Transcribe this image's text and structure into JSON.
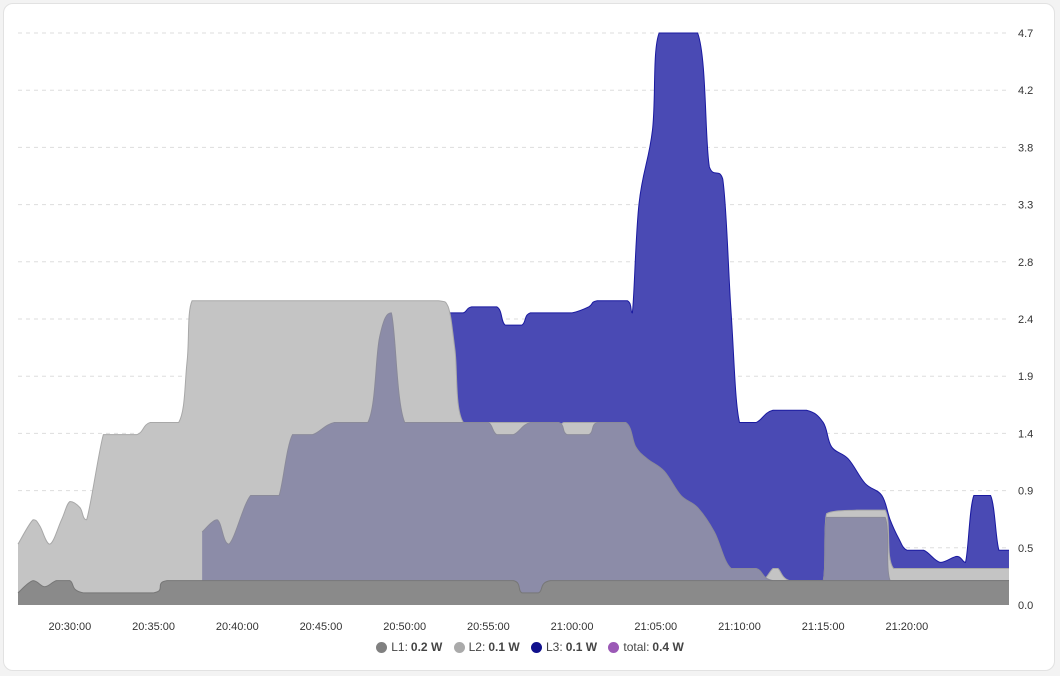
{
  "chart_data": {
    "type": "area",
    "x_ticks": [
      "20:30:00",
      "20:35:00",
      "20:40:00",
      "20:45:00",
      "20:50:00",
      "20:55:00",
      "21:00:00",
      "21:05:00",
      "21:10:00",
      "21:15:00",
      "21:20:00"
    ],
    "y_ticks": [
      "0.0",
      "0.5",
      "0.9",
      "1.4",
      "1.9",
      "2.4",
      "2.8",
      "3.3",
      "3.8",
      "4.2",
      "4.7"
    ],
    "ylim": [
      0,
      4.7
    ],
    "xlim_minutes": [
      -3.1,
      56.1
    ],
    "grid": true,
    "legend_position": "bottom",
    "series": [
      {
        "name": "L3",
        "color": "#1a1aa0",
        "fill": "#4a4ab4",
        "points": [
          [
            7.5,
            0.6
          ],
          [
            8.0,
            0.7
          ],
          [
            9.5,
            0.65
          ],
          [
            11.0,
            0.9
          ],
          [
            12.5,
            1.4
          ],
          [
            13.5,
            1.4
          ],
          [
            14.8,
            1.5
          ],
          [
            17.0,
            1.5
          ],
          [
            18.3,
            1.4
          ],
          [
            19.0,
            1.4
          ],
          [
            20.0,
            1.5
          ],
          [
            21.8,
            1.5
          ],
          [
            22.2,
            1.8
          ],
          [
            22.6,
            2.4
          ],
          [
            23.5,
            2.4
          ],
          [
            24.0,
            2.45
          ],
          [
            25.5,
            2.45
          ],
          [
            26.0,
            2.3
          ],
          [
            27.0,
            2.3
          ],
          [
            27.5,
            2.4
          ],
          [
            29.2,
            2.4
          ],
          [
            30.0,
            2.4
          ],
          [
            31.0,
            2.45
          ],
          [
            31.5,
            2.5
          ],
          [
            33.3,
            2.5
          ],
          [
            33.6,
            2.4
          ],
          [
            34.0,
            3.3
          ],
          [
            34.8,
            3.9
          ],
          [
            35.2,
            4.7
          ],
          [
            37.5,
            4.7
          ],
          [
            38.2,
            3.6
          ],
          [
            39.0,
            3.5
          ],
          [
            39.5,
            2.4
          ],
          [
            40.0,
            1.5
          ],
          [
            41.0,
            1.5
          ],
          [
            42.0,
            1.6
          ],
          [
            44.0,
            1.6
          ],
          [
            45.0,
            1.5
          ],
          [
            45.5,
            1.3
          ],
          [
            46.5,
            1.2
          ],
          [
            47.5,
            1.0
          ],
          [
            48.5,
            0.9
          ],
          [
            49.0,
            0.7
          ],
          [
            49.5,
            0.55
          ],
          [
            50.0,
            0.45
          ],
          [
            51.0,
            0.45
          ],
          [
            52.0,
            0.35
          ],
          [
            53.0,
            0.4
          ],
          [
            53.5,
            0.35
          ],
          [
            54.0,
            0.9
          ],
          [
            55.0,
            0.9
          ],
          [
            55.5,
            0.45
          ],
          [
            56.1,
            0.45
          ]
        ]
      },
      {
        "name": "L2",
        "color": "#a8a8a8",
        "fill": "#c4c4c4",
        "points": [
          [
            -3.1,
            0.5
          ],
          [
            -2.2,
            0.7
          ],
          [
            -1.8,
            0.65
          ],
          [
            -1.2,
            0.5
          ],
          [
            -0.5,
            0.7
          ],
          [
            0.0,
            0.85
          ],
          [
            0.6,
            0.8
          ],
          [
            1.0,
            0.7
          ],
          [
            2.0,
            1.4
          ],
          [
            2.5,
            1.4
          ],
          [
            4.0,
            1.4
          ],
          [
            4.8,
            1.5
          ],
          [
            6.5,
            1.5
          ],
          [
            7.0,
            2.0
          ],
          [
            7.3,
            2.5
          ],
          [
            16.5,
            2.5
          ],
          [
            20.0,
            2.5
          ],
          [
            22.0,
            2.5
          ],
          [
            22.6,
            2.45
          ],
          [
            23.0,
            2.1
          ],
          [
            23.5,
            1.5
          ],
          [
            26.0,
            1.5
          ],
          [
            27.5,
            1.5
          ],
          [
            28.0,
            1.4
          ],
          [
            29.0,
            1.4
          ],
          [
            29.5,
            1.5
          ],
          [
            31.0,
            1.5
          ],
          [
            32.0,
            1.5
          ],
          [
            33.0,
            1.4
          ],
          [
            34.0,
            1.2
          ],
          [
            34.3,
            1.1
          ],
          [
            35.0,
            1.0
          ],
          [
            35.5,
            0.9
          ],
          [
            36.0,
            0.85
          ],
          [
            37.0,
            0.75
          ],
          [
            37.5,
            0.6
          ],
          [
            38.2,
            0.5
          ],
          [
            38.8,
            0.4
          ],
          [
            39.2,
            0.3
          ],
          [
            40.5,
            0.3
          ],
          [
            41.3,
            0.2
          ],
          [
            42.0,
            0.3
          ],
          [
            42.3,
            0.3
          ],
          [
            43.0,
            0.2
          ],
          [
            45.0,
            0.2
          ],
          [
            45.2,
            0.75
          ],
          [
            47.0,
            0.78
          ],
          [
            48.7,
            0.78
          ],
          [
            49.2,
            0.3
          ],
          [
            56.1,
            0.3
          ]
        ]
      },
      {
        "name": "L1",
        "color": "#8a8a9a",
        "fill": "#8c8ca8",
        "points": [
          [
            7.9,
            0.6
          ],
          [
            8.8,
            0.7
          ],
          [
            9.5,
            0.5
          ],
          [
            10.8,
            0.9
          ],
          [
            12.0,
            0.9
          ],
          [
            12.5,
            0.9
          ],
          [
            13.3,
            1.4
          ],
          [
            14.5,
            1.4
          ],
          [
            15.8,
            1.5
          ],
          [
            17.8,
            1.5
          ],
          [
            18.5,
            2.2
          ],
          [
            19.2,
            2.4
          ],
          [
            20.0,
            1.5
          ],
          [
            22.0,
            1.5
          ],
          [
            23.0,
            1.5
          ],
          [
            24.0,
            1.5
          ],
          [
            25.0,
            1.5
          ],
          [
            25.5,
            1.4
          ],
          [
            26.5,
            1.4
          ],
          [
            27.5,
            1.5
          ],
          [
            29.2,
            1.5
          ],
          [
            29.7,
            1.4
          ],
          [
            31.0,
            1.4
          ],
          [
            31.5,
            1.5
          ],
          [
            33.2,
            1.5
          ],
          [
            33.8,
            1.3
          ],
          [
            34.5,
            1.2
          ],
          [
            35.5,
            1.1
          ],
          [
            36.5,
            0.9
          ],
          [
            37.5,
            0.8
          ],
          [
            38.5,
            0.6
          ],
          [
            39.5,
            0.3
          ],
          [
            41.0,
            0.3
          ],
          [
            42.0,
            0.2
          ],
          [
            45.0,
            0.2
          ],
          [
            45.2,
            0.72
          ],
          [
            48.7,
            0.72
          ],
          [
            49.0,
            0.2
          ],
          [
            56.1,
            0.2
          ]
        ]
      },
      {
        "name": "total",
        "color": "#777777",
        "fill": "#8a8a8a",
        "points": [
          [
            -3.1,
            0.1
          ],
          [
            -2.2,
            0.2
          ],
          [
            -1.5,
            0.15
          ],
          [
            -0.8,
            0.2
          ],
          [
            0.0,
            0.2
          ],
          [
            0.8,
            0.1
          ],
          [
            5.0,
            0.1
          ],
          [
            5.8,
            0.2
          ],
          [
            11.0,
            0.2
          ],
          [
            26.5,
            0.2
          ],
          [
            27.0,
            0.1
          ],
          [
            28.0,
            0.1
          ],
          [
            28.7,
            0.2
          ],
          [
            56.1,
            0.2
          ]
        ]
      }
    ],
    "legend": [
      {
        "label": "L1",
        "value": "0.2 W",
        "color": "#808080"
      },
      {
        "label": "L2",
        "value": "0.1 W",
        "color": "#aaaaaa"
      },
      {
        "label": "L3",
        "value": "0.1 W",
        "color": "#10108c"
      },
      {
        "label": "total",
        "value": "0.4 W",
        "color": "#9b59b6"
      }
    ]
  }
}
